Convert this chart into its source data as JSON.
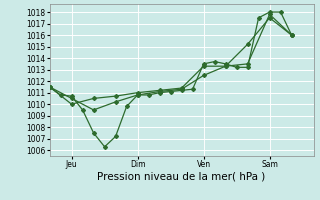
{
  "xlabel": "Pression niveau de la mer( hPa )",
  "ylim": [
    1005.5,
    1018.7
  ],
  "yticks": [
    1006,
    1007,
    1008,
    1009,
    1010,
    1011,
    1012,
    1013,
    1014,
    1015,
    1016,
    1017,
    1018
  ],
  "bg_color": "#cceae7",
  "grid_color": "#ffffff",
  "line_color": "#2d6b2d",
  "xtick_labels": [
    "Jeu",
    "Dim",
    "Ven",
    "Sam"
  ],
  "xtick_positions": [
    2,
    8,
    14,
    20
  ],
  "xlim": [
    0,
    24
  ],
  "vline_positions": [
    2,
    8,
    14,
    20
  ],
  "line1_x": [
    0,
    1,
    2,
    3,
    4,
    5,
    6,
    7,
    8,
    9,
    10,
    11,
    12,
    13,
    14,
    15,
    16,
    17,
    18,
    19,
    20,
    21,
    22
  ],
  "line1_y": [
    1011.5,
    1010.8,
    1010.7,
    1009.5,
    1007.5,
    1006.3,
    1007.2,
    1009.8,
    1010.8,
    1010.8,
    1011.0,
    1011.1,
    1011.2,
    1011.3,
    1013.5,
    1013.7,
    1013.5,
    1013.2,
    1013.2,
    1017.5,
    1018.0,
    1018.0,
    1016.0
  ],
  "line2_x": [
    0,
    2,
    4,
    6,
    8,
    10,
    12,
    14,
    16,
    18,
    20,
    22
  ],
  "line2_y": [
    1011.5,
    1010.5,
    1009.5,
    1010.2,
    1010.8,
    1011.1,
    1011.3,
    1012.5,
    1013.3,
    1015.2,
    1017.5,
    1016.0
  ],
  "line3_x": [
    0,
    2,
    4,
    6,
    8,
    10,
    12,
    14,
    16,
    18,
    20,
    22
  ],
  "line3_y": [
    1011.5,
    1010.0,
    1010.5,
    1010.7,
    1011.0,
    1011.2,
    1011.4,
    1013.3,
    1013.3,
    1013.5,
    1017.8,
    1016.0
  ],
  "marker_style": "D",
  "marker_size": 2.0,
  "line_width": 0.9,
  "tick_fontsize": 5.5,
  "xlabel_fontsize": 7.5
}
